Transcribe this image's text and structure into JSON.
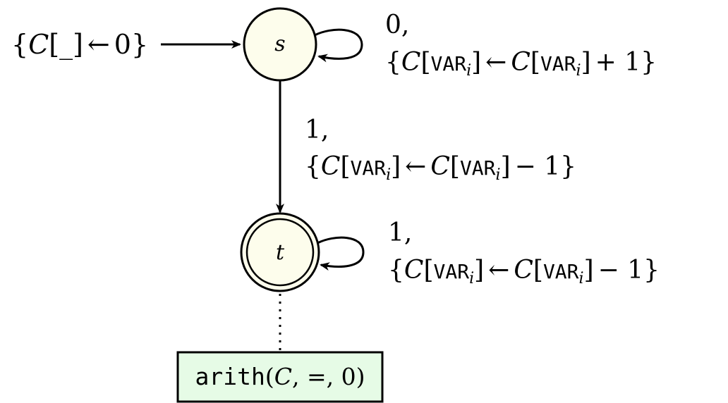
{
  "initial_label": {
    "open": "{",
    "var": "C",
    "lbr": "[",
    "wild": "_",
    "rbr": "]",
    "arrow": "←",
    "value": "0",
    "close": "}"
  },
  "states": {
    "s": {
      "name": "s"
    },
    "t": {
      "name": "t"
    }
  },
  "transitions": {
    "s_loop": {
      "input": "0,",
      "open": "{",
      "var": "C",
      "lbr": "[",
      "reg": "VAR",
      "sub": "i",
      "rbr": "]",
      "arrow": "←",
      "var2": "C",
      "lbr2": "[",
      "reg2": "VAR",
      "sub2": "i",
      "rbr2": "]",
      "op": "+ 1",
      "close": "}"
    },
    "s_to_t": {
      "input": "1,",
      "open": "{",
      "var": "C",
      "lbr": "[",
      "reg": "VAR",
      "sub": "i",
      "rbr": "]",
      "arrow": "←",
      "var2": "C",
      "lbr2": "[",
      "reg2": "VAR",
      "sub2": "i",
      "rbr2": "]",
      "op": "− 1",
      "close": "}"
    },
    "t_loop": {
      "input": "1,",
      "open": "{",
      "var": "C",
      "lbr": "[",
      "reg": "VAR",
      "sub": "i",
      "rbr": "]",
      "arrow": "←",
      "var2": "C",
      "lbr2": "[",
      "reg2": "VAR",
      "sub2": "i",
      "rbr2": "]",
      "op": "− 1",
      "close": "}"
    }
  },
  "final_condition": {
    "func": "arith",
    "args_open": "(",
    "var": "C",
    "sep1": ", ",
    "rel": "=",
    "sep2": ", ",
    "value": "0",
    "args_close": ")"
  },
  "colors": {
    "state_fill": "#fdfdec",
    "box_fill": "#e6fbe6",
    "stroke": "#000000"
  }
}
